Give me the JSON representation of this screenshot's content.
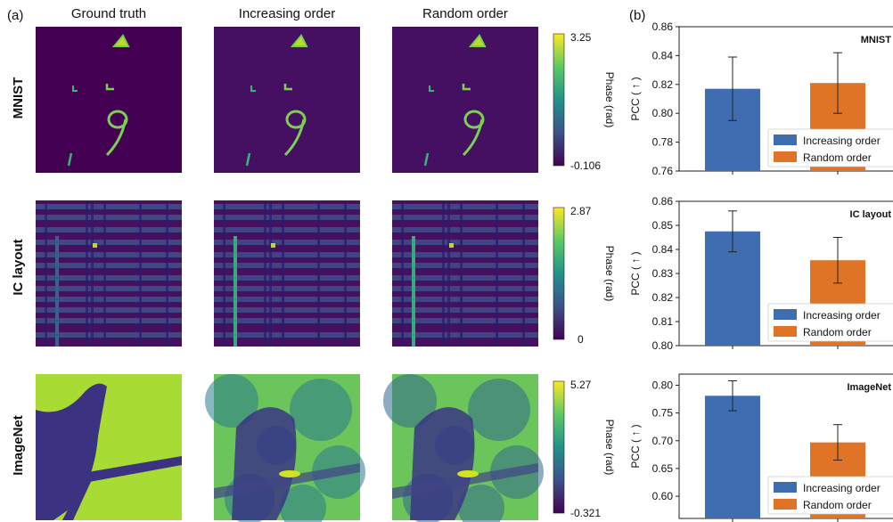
{
  "panel_labels": {
    "a": "(a)",
    "b": "(b)"
  },
  "column_headers": [
    "Ground truth",
    "Increasing order",
    "Random order"
  ],
  "rows": [
    {
      "label": "MNIST",
      "colorbar": {
        "max": "3.25",
        "min": "-0.106",
        "label": "Phase (rad)"
      }
    },
    {
      "label": "IC layout",
      "colorbar": {
        "max": "2.87",
        "min": "0",
        "label": "Phase (rad)"
      }
    },
    {
      "label": "ImageNet",
      "colorbar": {
        "max": "5.27",
        "min": "-0.321",
        "label": "Phase (rad)"
      }
    }
  ],
  "colors": {
    "increasing": "#3f6db1",
    "random": "#e07426",
    "viridis_dark": "#440154",
    "viridis_mid": "#21918c",
    "viridis_light": "#fde725"
  },
  "chart_data": [
    {
      "type": "bar",
      "title": "MNIST",
      "ylabel": "PCC ( ↑ )",
      "categories": [
        "Increasing order",
        "Random order"
      ],
      "values": [
        0.817,
        0.821
      ],
      "errors": [
        0.022,
        0.021
      ],
      "ylim": [
        0.76,
        0.86
      ],
      "yticks": [
        "0.76",
        "0.78",
        "0.80",
        "0.82",
        "0.84",
        "0.86"
      ],
      "legend": [
        "Increasing order",
        "Random order"
      ],
      "legend_position": "lower-right"
    },
    {
      "type": "bar",
      "title": "IC layout",
      "ylabel": "PCC ( ↑ )",
      "categories": [
        "Increasing order",
        "Random order"
      ],
      "values": [
        0.8475,
        0.8355
      ],
      "errors": [
        0.0085,
        0.0095
      ],
      "ylim": [
        0.8,
        0.86
      ],
      "yticks": [
        "0.80",
        "0.81",
        "0.82",
        "0.83",
        "0.84",
        "0.85",
        "0.86"
      ],
      "legend": [
        "Increasing order",
        "Random order"
      ],
      "legend_position": "lower-right"
    },
    {
      "type": "bar",
      "title": "ImageNet",
      "ylabel": "PCC ( ↑ )",
      "categories": [
        "Increasing order",
        "Random order"
      ],
      "values": [
        0.781,
        0.697
      ],
      "errors": [
        0.027,
        0.032
      ],
      "ylim": [
        0.56,
        0.82
      ],
      "yticks": [
        "0.60",
        "0.65",
        "0.70",
        "0.75",
        "0.80"
      ],
      "legend": [
        "Increasing order",
        "Random order"
      ],
      "legend_position": "lower-right"
    }
  ]
}
